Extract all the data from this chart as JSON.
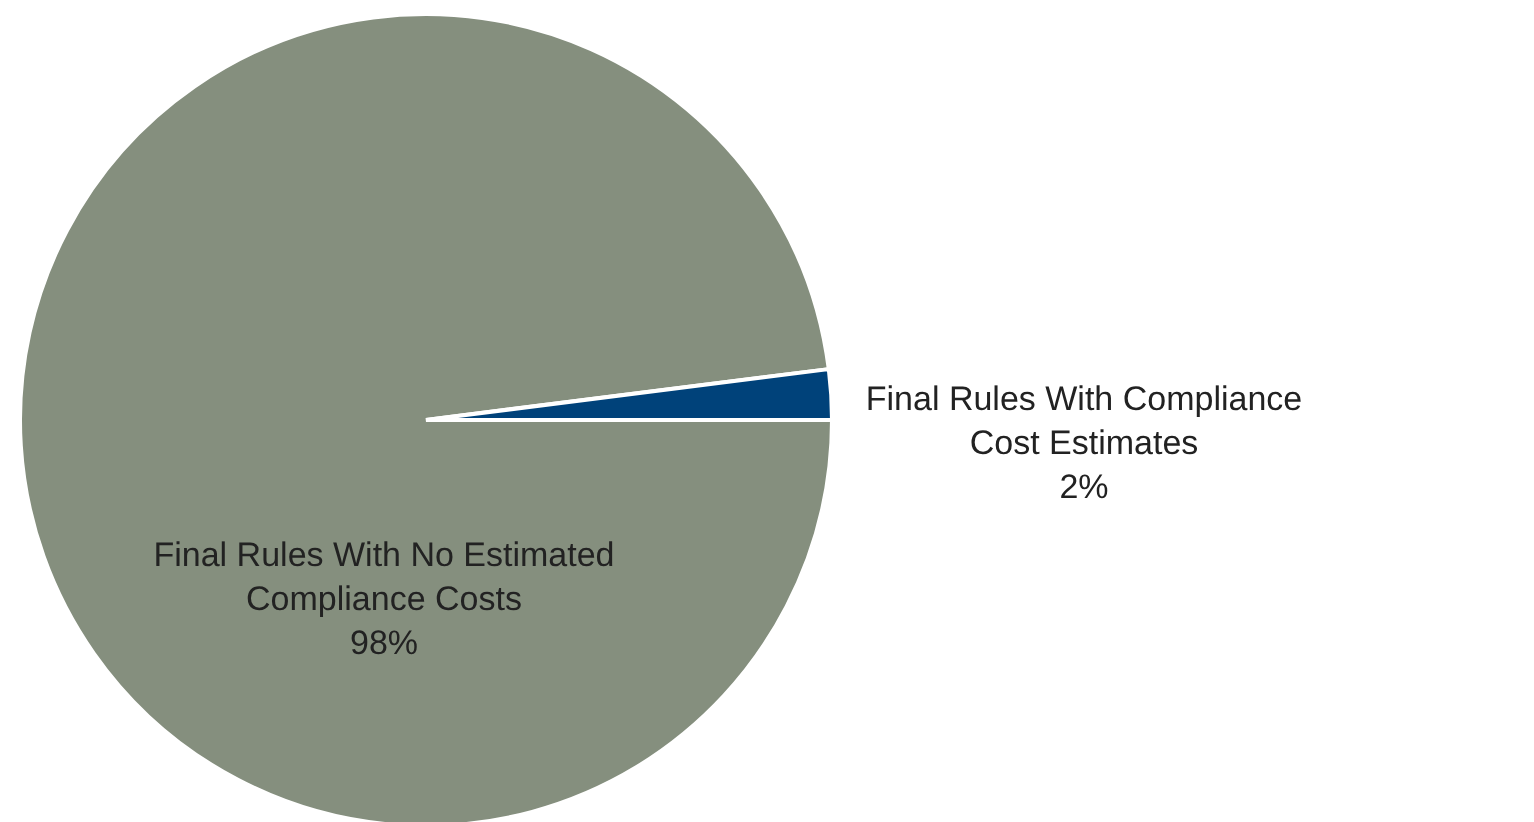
{
  "chart_data": {
    "type": "pie",
    "categories": [
      "Final Rules With No Estimated Compliance Costs",
      "Final Rules With Compliance Cost Estimates"
    ],
    "values": [
      98,
      2
    ],
    "colors": [
      "#858f7e",
      "#00427a"
    ],
    "value_labels": [
      "98%",
      "2%"
    ],
    "legend": false
  }
}
